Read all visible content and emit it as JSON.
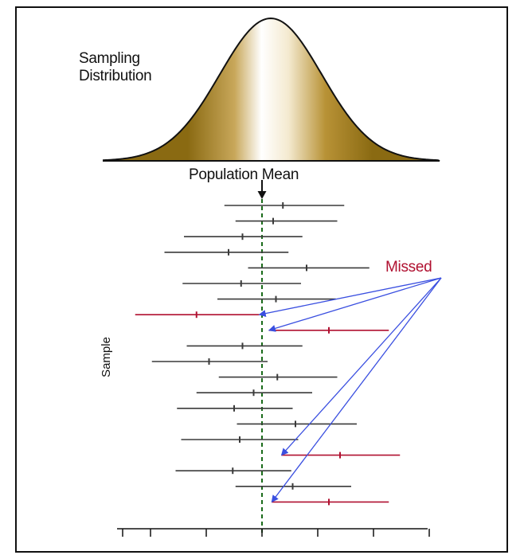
{
  "labels": {
    "sampling_distribution_line1": "Sampling",
    "sampling_distribution_line2": "Distribution",
    "population_mean": "Population Mean",
    "missed": "Missed",
    "sample": "Sample"
  },
  "colors": {
    "hit_interval": "#3a3a3a",
    "missed_interval": "#b01030",
    "missed_label": "#b01030",
    "pointer_arrow": "#3a4fe0",
    "mean_line": "#1a6b1a",
    "curve_fill_dark": "#8a6a12",
    "curve_fill_light": "#ffffff"
  },
  "intervals": [
    {
      "lower": -1.35,
      "estimate": 0.75,
      "upper": 2.95,
      "missed": false
    },
    {
      "lower": -0.95,
      "estimate": 0.4,
      "upper": 2.7,
      "missed": false
    },
    {
      "lower": -2.8,
      "estimate": -0.7,
      "upper": 1.45,
      "missed": false
    },
    {
      "lower": -3.5,
      "estimate": -1.2,
      "upper": 0.95,
      "missed": false
    },
    {
      "lower": -0.5,
      "estimate": 1.6,
      "upper": 3.85,
      "missed": false
    },
    {
      "lower": -2.85,
      "estimate": -0.75,
      "upper": 1.4,
      "missed": false
    },
    {
      "lower": -1.6,
      "estimate": 0.5,
      "upper": 2.65,
      "missed": false
    },
    {
      "lower": -4.55,
      "estimate": -2.35,
      "upper": -0.1,
      "missed": true
    },
    {
      "lower": 0.25,
      "estimate": 2.4,
      "upper": 4.55,
      "missed": true
    },
    {
      "lower": -2.7,
      "estimate": -0.7,
      "upper": 1.45,
      "missed": false
    },
    {
      "lower": -3.95,
      "estimate": -1.9,
      "upper": 0.2,
      "missed": false
    },
    {
      "lower": -1.55,
      "estimate": 0.55,
      "upper": 2.7,
      "missed": false
    },
    {
      "lower": -2.35,
      "estimate": -0.3,
      "upper": 1.8,
      "missed": false
    },
    {
      "lower": -3.05,
      "estimate": -1.0,
      "upper": 1.1,
      "missed": false
    },
    {
      "lower": -0.9,
      "estimate": 1.2,
      "upper": 3.4,
      "missed": false
    },
    {
      "lower": -2.9,
      "estimate": -0.8,
      "upper": 1.3,
      "missed": false
    },
    {
      "lower": 0.7,
      "estimate": 2.8,
      "upper": 4.95,
      "missed": true
    },
    {
      "lower": -3.1,
      "estimate": -1.05,
      "upper": 1.05,
      "missed": false
    },
    {
      "lower": -0.95,
      "estimate": 1.1,
      "upper": 3.2,
      "missed": false
    },
    {
      "lower": 0.35,
      "estimate": 2.4,
      "upper": 4.55,
      "missed": true
    }
  ],
  "axis_ticks": [
    -5,
    -4,
    -2,
    0,
    2,
    4,
    6
  ],
  "population_mean": 0
}
